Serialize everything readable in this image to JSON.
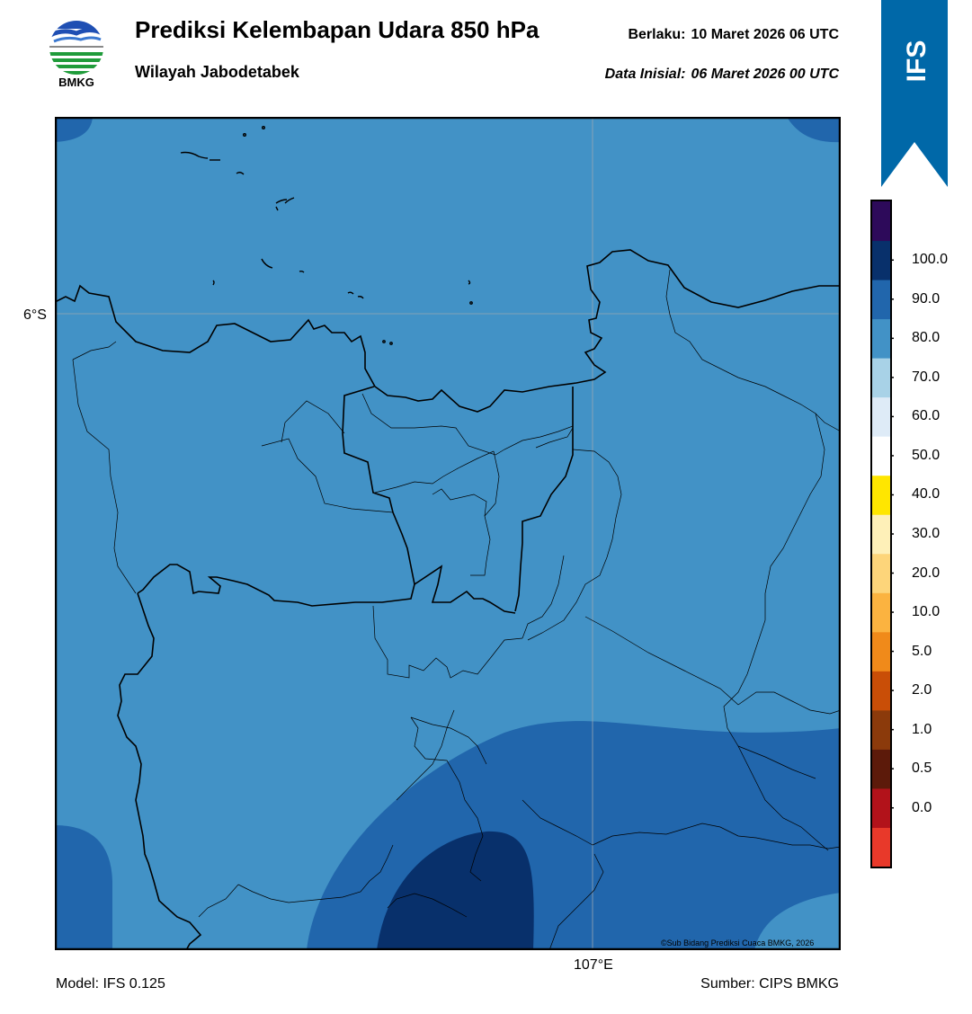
{
  "header": {
    "title": "Prediksi Kelembapan Udara 850 hPa",
    "subtitle": "Wilayah Jabodetabek",
    "valid_label": "Berlaku:",
    "valid_value": "10 Maret 2026 06 UTC",
    "init_label": "Data Inisial:",
    "init_value": "06 Maret 2026 00 UTC"
  },
  "logo": {
    "text": "BMKG",
    "icon": "bmkg-logo-icon"
  },
  "badge": {
    "text": "IFS",
    "color": "#0068a8"
  },
  "map": {
    "lat_label": "6°S",
    "lon_label": "107°E",
    "copyright": "©Sub Bidang Prediksi Cuaca BMKG, 2026",
    "fill_colors": [
      "#4292c6",
      "#2166ac",
      "#08306b"
    ]
  },
  "colorbar": {
    "ticks": [
      "0.0",
      "0.5",
      "1.0",
      "2.0",
      "5.0",
      "10.0",
      "20.0",
      "30.0",
      "40.0",
      "50.0",
      "60.0",
      "70.0",
      "80.0",
      "90.0",
      "100.0"
    ],
    "colors": [
      "#e8392a",
      "#b2121a",
      "#5c1a0a",
      "#8b3a0b",
      "#c94e07",
      "#f08a1a",
      "#fbb340",
      "#fdd57a",
      "#fef0b8",
      "#ffe600",
      "#ffffff",
      "#deebf7",
      "#a8d2e7",
      "#4292c6",
      "#2166ac",
      "#08306b",
      "#2d0a5a"
    ]
  },
  "footer": {
    "model": "Model: IFS 0.125",
    "source": "Sumber: CIPS BMKG"
  }
}
